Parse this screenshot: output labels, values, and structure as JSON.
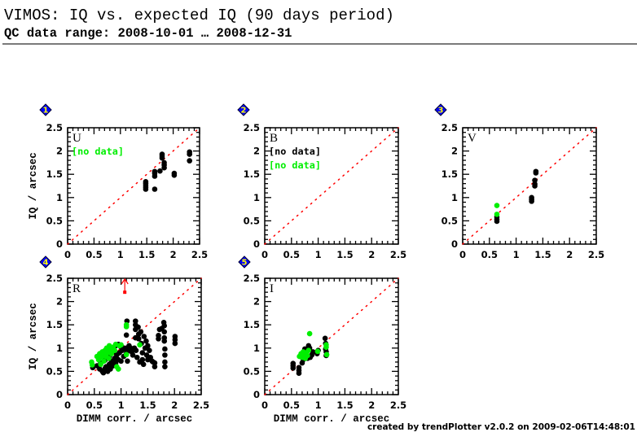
{
  "header": {
    "title": "VIMOS: IQ vs. expected IQ (90 days period)",
    "subtitle": "QC data range: 2008-10-01 … 2008-12-31"
  },
  "footer": "created by trendPlotter v2.0.2 on 2009-02-06T14:48:01",
  "colors": {
    "series_black": "#000000",
    "series_green": "#00ee00",
    "reference_line": "#ff0000",
    "badge_fill": "#0000ff",
    "badge_text": "#ffff00"
  },
  "chart_data": [
    {
      "type": "scatter",
      "badge": "1",
      "title": "U",
      "notes": [
        {
          "text": "[no data]",
          "color": "#00ee00"
        }
      ],
      "xlabel": "",
      "ylabel": "IQ / arcsec",
      "xlim": [
        0,
        2.5
      ],
      "ylim": [
        0,
        2.5
      ],
      "xticks": [
        "0",
        "0.5",
        "1",
        "1.5",
        "2",
        "2.5"
      ],
      "yticks": [
        "0",
        "0.5",
        "1",
        "1.5",
        "2",
        "2.5"
      ],
      "reference_line": {
        "from": [
          0,
          0
        ],
        "to": [
          2.5,
          2.5
        ],
        "style": "dotted",
        "color": "#ff0000"
      },
      "upper_limits": [],
      "series": [
        {
          "name": "black",
          "color": "#000000",
          "points": [
            [
              1.48,
              1.18
            ],
            [
              1.48,
              1.22
            ],
            [
              1.48,
              1.26
            ],
            [
              1.48,
              1.3
            ],
            [
              1.48,
              1.34
            ],
            [
              1.65,
              1.18
            ],
            [
              1.65,
              1.46
            ],
            [
              1.65,
              1.52
            ],
            [
              1.65,
              1.56
            ],
            [
              1.75,
              1.57
            ],
            [
              1.79,
              1.85
            ],
            [
              1.79,
              1.89
            ],
            [
              1.79,
              1.93
            ],
            [
              1.83,
              1.64
            ],
            [
              1.83,
              1.7
            ],
            [
              1.83,
              1.75
            ],
            [
              2.02,
              1.48
            ],
            [
              2.02,
              1.52
            ],
            [
              2.31,
              1.79
            ],
            [
              2.31,
              1.93
            ],
            [
              2.31,
              1.98
            ]
          ]
        },
        {
          "name": "green",
          "color": "#00ee00",
          "points": []
        }
      ]
    },
    {
      "type": "scatter",
      "badge": "2",
      "title": "B",
      "notes": [
        {
          "text": "[no data]",
          "color": "#000000"
        },
        {
          "text": "[no data]",
          "color": "#00ee00"
        }
      ],
      "xlabel": "",
      "ylabel": "",
      "xlim": [
        0,
        2.5
      ],
      "ylim": [
        0,
        2.5
      ],
      "xticks": [
        "0",
        "0.5",
        "1",
        "1.5",
        "2",
        "2.5"
      ],
      "yticks": [
        "0",
        "0.5",
        "1",
        "1.5",
        "2",
        "2.5"
      ],
      "reference_line": {
        "from": [
          0,
          0
        ],
        "to": [
          2.5,
          2.5
        ],
        "style": "dotted",
        "color": "#ff0000"
      },
      "upper_limits": [],
      "series": [
        {
          "name": "black",
          "color": "#000000",
          "points": []
        },
        {
          "name": "green",
          "color": "#00ee00",
          "points": []
        }
      ]
    },
    {
      "type": "scatter",
      "badge": "3",
      "title": "V",
      "notes": [],
      "xlabel": "",
      "ylabel": "",
      "xlim": [
        0,
        2.5
      ],
      "ylim": [
        0,
        2.5
      ],
      "xticks": [
        "0",
        "0.5",
        "1",
        "1.5",
        "2",
        "2.5"
      ],
      "yticks": [
        "0",
        "0.5",
        "1",
        "1.5",
        "2",
        "2.5"
      ],
      "reference_line": {
        "from": [
          0,
          0
        ],
        "to": [
          2.5,
          2.5
        ],
        "style": "dotted",
        "color": "#ff0000"
      },
      "upper_limits": [],
      "series": [
        {
          "name": "black",
          "color": "#000000",
          "points": [
            [
              0.64,
              0.49
            ],
            [
              0.64,
              0.53
            ],
            [
              0.64,
              0.58
            ],
            [
              1.29,
              0.92
            ],
            [
              1.29,
              0.96
            ],
            [
              1.29,
              1.0
            ],
            [
              1.35,
              1.25
            ],
            [
              1.35,
              1.29
            ],
            [
              1.35,
              1.37
            ],
            [
              1.37,
              1.53
            ],
            [
              1.37,
              1.56
            ]
          ]
        },
        {
          "name": "green",
          "color": "#00ee00",
          "points": [
            [
              0.64,
              0.83
            ],
            [
              0.64,
              0.64
            ]
          ]
        }
      ]
    },
    {
      "type": "scatter",
      "badge": "4",
      "title": "R",
      "notes": [],
      "xlabel": "DIMM corr. / arcsec",
      "ylabel": "IQ / arcsec",
      "xlim": [
        0,
        2.5
      ],
      "ylim": [
        0,
        2.5
      ],
      "xticks": [
        "0",
        "0.5",
        "1",
        "1.5",
        "2",
        "2.5"
      ],
      "yticks": [
        "0",
        "0.5",
        "1",
        "1.5",
        "2",
        "2.5"
      ],
      "reference_line": {
        "from": [
          0,
          0
        ],
        "to": [
          2.5,
          2.5
        ],
        "style": "dotted",
        "color": "#ff0000"
      },
      "upper_limits": [
        {
          "x": 1.07,
          "y": 2.2,
          "color": "#ff0000"
        }
      ],
      "series": [
        {
          "name": "black",
          "color": "#000000",
          "points": [
            [
              0.47,
              0.58
            ],
            [
              0.55,
              0.62
            ],
            [
              0.6,
              0.55
            ],
            [
              0.62,
              0.68
            ],
            [
              0.65,
              0.5
            ],
            [
              0.67,
              0.47
            ],
            [
              0.7,
              0.56
            ],
            [
              0.72,
              0.6
            ],
            [
              0.75,
              0.5
            ],
            [
              0.78,
              0.65
            ],
            [
              0.8,
              0.55
            ],
            [
              0.82,
              0.72
            ],
            [
              0.85,
              0.62
            ],
            [
              0.88,
              0.78
            ],
            [
              0.9,
              0.68
            ],
            [
              0.92,
              0.85
            ],
            [
              0.95,
              0.75
            ],
            [
              0.97,
              0.9
            ],
            [
              1.0,
              0.72
            ],
            [
              1.02,
              0.95
            ],
            [
              1.05,
              0.82
            ],
            [
              1.07,
              0.98
            ],
            [
              1.1,
              0.88
            ],
            [
              1.1,
              1.0
            ],
            [
              1.1,
              1.28
            ],
            [
              1.11,
              1.58
            ],
            [
              1.12,
              0.72
            ],
            [
              1.15,
              0.95
            ],
            [
              1.18,
              1.0
            ],
            [
              1.2,
              0.92
            ],
            [
              1.22,
              0.85
            ],
            [
              1.25,
              1.0
            ],
            [
              1.27,
              1.58
            ],
            [
              1.27,
              1.5
            ],
            [
              1.27,
              1.4
            ],
            [
              1.27,
              1.22
            ],
            [
              1.28,
              0.95
            ],
            [
              1.3,
              0.8
            ],
            [
              1.32,
              1.45
            ],
            [
              1.33,
              1.3
            ],
            [
              1.33,
              1.2
            ],
            [
              1.35,
              0.7
            ],
            [
              1.37,
              1.35
            ],
            [
              1.38,
              1.1
            ],
            [
              1.4,
              0.9
            ],
            [
              1.4,
              0.75
            ],
            [
              1.42,
              0.65
            ],
            [
              1.43,
              1.25
            ],
            [
              1.45,
              1.0
            ],
            [
              1.47,
              1.15
            ],
            [
              1.48,
              0.85
            ],
            [
              1.5,
              1.05
            ],
            [
              1.5,
              0.75
            ],
            [
              1.53,
              0.95
            ],
            [
              1.55,
              0.8
            ],
            [
              1.58,
              0.72
            ],
            [
              1.6,
              0.7
            ],
            [
              1.63,
              0.6
            ],
            [
              1.63,
              0.68
            ],
            [
              1.7,
              1.27
            ],
            [
              1.7,
              1.2
            ],
            [
              1.72,
              1.4
            ],
            [
              1.76,
              1.42
            ],
            [
              1.8,
              1.55
            ],
            [
              1.81,
              1.48
            ],
            [
              1.81,
              1.35
            ],
            [
              1.81,
              1.22
            ],
            [
              1.81,
              1.15
            ],
            [
              1.82,
              0.98
            ],
            [
              1.82,
              0.85
            ],
            [
              1.82,
              0.7
            ],
            [
              1.82,
              0.6
            ],
            [
              2.01,
              1.25
            ],
            [
              2.01,
              1.18
            ],
            [
              2.01,
              1.1
            ],
            [
              0.85,
              0.92
            ],
            [
              0.9,
              1.05
            ],
            [
              0.95,
              1.08
            ],
            [
              1.0,
              1.02
            ],
            [
              1.05,
              1.0
            ],
            [
              1.15,
              1.05
            ],
            [
              0.78,
              0.82
            ],
            [
              0.7,
              0.74
            ]
          ]
        },
        {
          "name": "green",
          "color": "#00ee00",
          "points": [
            [
              0.45,
              0.7
            ],
            [
              0.46,
              0.64
            ],
            [
              0.55,
              0.82
            ],
            [
              0.58,
              0.75
            ],
            [
              0.6,
              0.88
            ],
            [
              0.62,
              0.65
            ],
            [
              0.63,
              0.8
            ],
            [
              0.65,
              0.92
            ],
            [
              0.67,
              0.85
            ],
            [
              0.68,
              0.72
            ],
            [
              0.7,
              0.95
            ],
            [
              0.72,
              0.82
            ],
            [
              0.73,
              1.0
            ],
            [
              0.75,
              0.9
            ],
            [
              0.77,
              0.78
            ],
            [
              0.78,
              1.05
            ],
            [
              0.8,
              0.95
            ],
            [
              0.82,
              0.88
            ],
            [
              0.85,
              1.02
            ],
            [
              0.88,
              0.95
            ],
            [
              0.9,
              1.08
            ],
            [
              0.92,
              0.6
            ],
            [
              0.95,
              0.55
            ],
            [
              0.97,
              1.05
            ],
            [
              1.0,
              1.07
            ],
            [
              1.1,
              1.5
            ],
            [
              1.1,
              1.46
            ],
            [
              1.1,
              0.86
            ],
            [
              1.35,
              1.07
            ]
          ]
        }
      ]
    },
    {
      "type": "scatter",
      "badge": "5",
      "title": "I",
      "notes": [],
      "xlabel": "DIMM corr. / arcsec",
      "ylabel": "",
      "xlim": [
        0,
        2.5
      ],
      "ylim": [
        0,
        2.5
      ],
      "xticks": [
        "0",
        "0.5",
        "1",
        "1.5",
        "2",
        "2.5"
      ],
      "yticks": [
        "0",
        "0.5",
        "1",
        "1.5",
        "2",
        "2.5"
      ],
      "reference_line": {
        "from": [
          0,
          0
        ],
        "to": [
          2.5,
          2.5
        ],
        "style": "dotted",
        "color": "#ff0000"
      },
      "upper_limits": [],
      "series": [
        {
          "name": "black",
          "color": "#000000",
          "points": [
            [
              0.53,
              0.67
            ],
            [
              0.53,
              0.62
            ],
            [
              0.53,
              0.57
            ],
            [
              0.64,
              0.58
            ],
            [
              0.64,
              0.52
            ],
            [
              0.64,
              0.46
            ],
            [
              0.7,
              0.68
            ],
            [
              0.72,
              0.75
            ],
            [
              0.75,
              0.98
            ],
            [
              0.78,
              0.85
            ],
            [
              0.8,
              0.78
            ],
            [
              0.82,
              1.05
            ],
            [
              0.84,
              1.0
            ],
            [
              0.85,
              0.8
            ],
            [
              0.88,
              0.85
            ],
            [
              0.9,
              0.92
            ],
            [
              0.98,
              0.88
            ],
            [
              1.0,
              0.95
            ],
            [
              1.13,
              1.21
            ],
            [
              1.14,
              1.1
            ],
            [
              1.14,
              0.98
            ],
            [
              1.15,
              0.92
            ],
            [
              1.15,
              0.84
            ]
          ]
        },
        {
          "name": "green",
          "color": "#00ee00",
          "points": [
            [
              0.65,
              0.82
            ],
            [
              0.68,
              0.88
            ],
            [
              0.7,
              0.8
            ],
            [
              0.72,
              0.92
            ],
            [
              0.74,
              0.86
            ],
            [
              0.76,
              0.78
            ],
            [
              0.78,
              0.9
            ],
            [
              0.8,
              0.84
            ],
            [
              0.82,
              0.95
            ],
            [
              0.84,
              1.31
            ],
            [
              0.99,
              0.93
            ],
            [
              1.15,
              1.07
            ],
            [
              1.15,
              1.02
            ],
            [
              1.16,
              0.86
            ]
          ]
        }
      ]
    }
  ]
}
